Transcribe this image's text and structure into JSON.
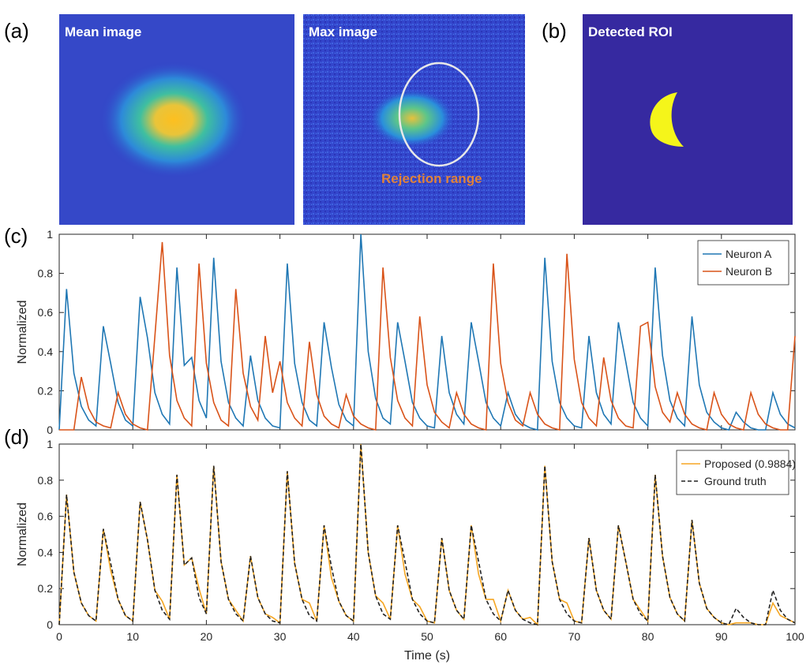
{
  "images": {
    "a": {
      "panel_label": "(a)",
      "mean_title": "Mean image",
      "max_title": "Max image",
      "rejection_label": "Rejection range"
    },
    "b": {
      "panel_label": "(b)",
      "title": "Detected ROI"
    }
  },
  "chart_data": [
    {
      "type": "line",
      "panel_label": "(c)",
      "ylabel": "Normalized",
      "x": [
        0,
        1,
        2,
        3,
        4,
        5,
        6,
        7,
        8,
        9,
        10,
        11,
        12,
        13,
        14,
        15,
        16,
        17,
        18,
        19,
        20,
        21,
        22,
        23,
        24,
        25,
        26,
        27,
        28,
        29,
        30,
        31,
        32,
        33,
        34,
        35,
        36,
        37,
        38,
        39,
        40,
        41,
        42,
        43,
        44,
        45,
        46,
        47,
        48,
        49,
        50,
        51,
        52,
        53,
        54,
        55,
        56,
        57,
        58,
        59,
        60,
        61,
        62,
        63,
        64,
        65,
        66,
        67,
        68,
        69,
        70,
        71,
        72,
        73,
        74,
        75,
        76,
        77,
        78,
        79,
        80,
        81,
        82,
        83,
        84,
        85,
        86,
        87,
        88,
        89,
        90,
        91,
        92,
        93,
        94,
        95,
        96,
        97,
        98,
        99,
        100
      ],
      "series": [
        {
          "name": "Neuron A",
          "color": "#1f77b4",
          "dash": false,
          "values": [
            0,
            0.72,
            0.29,
            0.12,
            0.05,
            0.02,
            0.53,
            0.34,
            0.14,
            0.05,
            0.02,
            0.68,
            0.47,
            0.19,
            0.08,
            0.03,
            0.83,
            0.33,
            0.37,
            0.15,
            0.06,
            0.88,
            0.35,
            0.14,
            0.06,
            0.02,
            0.38,
            0.15,
            0.06,
            0.02,
            0.01,
            0.85,
            0.34,
            0.14,
            0.05,
            0.02,
            0.55,
            0.32,
            0.13,
            0.05,
            0.02,
            1.0,
            0.4,
            0.16,
            0.06,
            0.03,
            0.55,
            0.35,
            0.14,
            0.06,
            0.02,
            0.01,
            0.48,
            0.19,
            0.08,
            0.03,
            0.55,
            0.35,
            0.14,
            0.06,
            0.02,
            0.19,
            0.08,
            0.03,
            0.01,
            0,
            0.88,
            0.35,
            0.14,
            0.06,
            0.02,
            0.01,
            0.48,
            0.19,
            0.08,
            0.03,
            0.55,
            0.35,
            0.14,
            0.06,
            0.02,
            0.83,
            0.38,
            0.15,
            0.06,
            0.02,
            0.58,
            0.23,
            0.09,
            0.04,
            0.01,
            0,
            0.09,
            0.04,
            0.01,
            0,
            0,
            0.19,
            0.08,
            0.03,
            0.01
          ]
        },
        {
          "name": "Neuron B",
          "color": "#d95319",
          "dash": false,
          "values": [
            0,
            0,
            0,
            0.27,
            0.11,
            0.04,
            0.02,
            0.01,
            0.19,
            0.08,
            0.03,
            0.01,
            0,
            0.48,
            0.96,
            0.38,
            0.15,
            0.06,
            0.02,
            0.85,
            0.34,
            0.14,
            0.05,
            0.02,
            0.72,
            0.29,
            0.12,
            0.05,
            0.48,
            0.19,
            0.35,
            0.14,
            0.06,
            0.02,
            0.45,
            0.18,
            0.07,
            0.03,
            0.01,
            0.18,
            0.07,
            0.03,
            0.01,
            0,
            0.83,
            0.37,
            0.15,
            0.06,
            0.02,
            0.58,
            0.23,
            0.09,
            0.04,
            0.01,
            0.19,
            0.08,
            0.03,
            0.01,
            0,
            0.85,
            0.34,
            0.14,
            0.05,
            0.02,
            0.19,
            0.08,
            0.03,
            0.01,
            0,
            0.9,
            0.36,
            0.14,
            0.06,
            0.02,
            0.37,
            0.15,
            0.06,
            0.02,
            0.01,
            0.53,
            0.55,
            0.22,
            0.09,
            0.04,
            0.19,
            0.08,
            0.03,
            0.01,
            0,
            0.19,
            0.08,
            0.03,
            0.01,
            0,
            0.19,
            0.08,
            0.03,
            0.01,
            0,
            0,
            0.48
          ]
        }
      ],
      "xlim": [
        0,
        100
      ],
      "xticks": [
        0,
        10,
        20,
        30,
        40,
        50,
        60,
        70,
        80,
        90,
        100
      ],
      "show_xtick_labels": false,
      "ylim": [
        0,
        1
      ],
      "yticks": [
        0,
        0.2,
        0.4,
        0.6,
        0.8,
        1
      ],
      "legend": "top-right"
    },
    {
      "type": "line",
      "panel_label": "(d)",
      "ylabel": "Normalized",
      "xlabel": "Time (s)",
      "x": [
        0,
        1,
        2,
        3,
        4,
        5,
        6,
        7,
        8,
        9,
        10,
        11,
        12,
        13,
        14,
        15,
        16,
        17,
        18,
        19,
        20,
        21,
        22,
        23,
        24,
        25,
        26,
        27,
        28,
        29,
        30,
        31,
        32,
        33,
        34,
        35,
        36,
        37,
        38,
        39,
        40,
        41,
        42,
        43,
        44,
        45,
        46,
        47,
        48,
        49,
        50,
        51,
        52,
        53,
        54,
        55,
        56,
        57,
        58,
        59,
        60,
        61,
        62,
        63,
        64,
        65,
        66,
        67,
        68,
        69,
        70,
        71,
        72,
        73,
        74,
        75,
        76,
        77,
        78,
        79,
        80,
        81,
        82,
        83,
        84,
        85,
        86,
        87,
        88,
        89,
        90,
        91,
        92,
        93,
        94,
        95,
        96,
        97,
        98,
        99,
        100
      ],
      "series": [
        {
          "name": "Proposed (0.9884)",
          "color": "#f5a623",
          "dash": false,
          "values": [
            0,
            0.72,
            0.29,
            0.12,
            0.05,
            0.02,
            0.53,
            0.3,
            0.14,
            0.05,
            0.02,
            0.68,
            0.47,
            0.19,
            0.13,
            0.03,
            0.83,
            0.33,
            0.37,
            0.2,
            0.06,
            0.88,
            0.35,
            0.14,
            0.08,
            0.02,
            0.38,
            0.15,
            0.06,
            0.04,
            0.01,
            0.85,
            0.34,
            0.14,
            0.12,
            0.02,
            0.55,
            0.26,
            0.13,
            0.05,
            0.02,
            1.0,
            0.4,
            0.16,
            0.12,
            0.03,
            0.55,
            0.28,
            0.14,
            0.1,
            0.02,
            0.01,
            0.48,
            0.19,
            0.08,
            0.03,
            0.55,
            0.28,
            0.14,
            0.14,
            0.02,
            0.19,
            0.08,
            0.03,
            0.04,
            0,
            0.88,
            0.35,
            0.14,
            0.12,
            0.02,
            0.01,
            0.48,
            0.19,
            0.08,
            0.03,
            0.55,
            0.35,
            0.14,
            0.08,
            0.02,
            0.83,
            0.38,
            0.15,
            0.06,
            0.02,
            0.58,
            0.23,
            0.09,
            0.04,
            0.01,
            0,
            0.01,
            0.01,
            0.01,
            0,
            0,
            0.12,
            0.05,
            0.03,
            0.01
          ]
        },
        {
          "name": "Ground truth",
          "color": "#222222",
          "dash": true,
          "values": [
            0,
            0.72,
            0.29,
            0.12,
            0.05,
            0.02,
            0.53,
            0.34,
            0.14,
            0.05,
            0.02,
            0.68,
            0.47,
            0.19,
            0.08,
            0.03,
            0.83,
            0.33,
            0.37,
            0.15,
            0.06,
            0.88,
            0.35,
            0.14,
            0.06,
            0.02,
            0.38,
            0.15,
            0.06,
            0.02,
            0.01,
            0.85,
            0.34,
            0.14,
            0.05,
            0.02,
            0.55,
            0.32,
            0.13,
            0.05,
            0.02,
            1.0,
            0.4,
            0.16,
            0.06,
            0.03,
            0.55,
            0.35,
            0.14,
            0.06,
            0.02,
            0.01,
            0.48,
            0.19,
            0.08,
            0.03,
            0.55,
            0.35,
            0.14,
            0.06,
            0.02,
            0.19,
            0.08,
            0.03,
            0.01,
            0,
            0.88,
            0.35,
            0.14,
            0.06,
            0.02,
            0.01,
            0.48,
            0.19,
            0.08,
            0.03,
            0.55,
            0.35,
            0.14,
            0.06,
            0.02,
            0.83,
            0.38,
            0.15,
            0.06,
            0.02,
            0.58,
            0.23,
            0.09,
            0.04,
            0.01,
            0,
            0.09,
            0.04,
            0.01,
            0,
            0,
            0.19,
            0.08,
            0.03,
            0.01
          ]
        }
      ],
      "xlim": [
        0,
        100
      ],
      "xticks": [
        0,
        10,
        20,
        30,
        40,
        50,
        60,
        70,
        80,
        90,
        100
      ],
      "show_xtick_labels": true,
      "ylim": [
        0,
        1
      ],
      "yticks": [
        0,
        0.2,
        0.4,
        0.6,
        0.8,
        1
      ],
      "legend": "top-right"
    }
  ]
}
